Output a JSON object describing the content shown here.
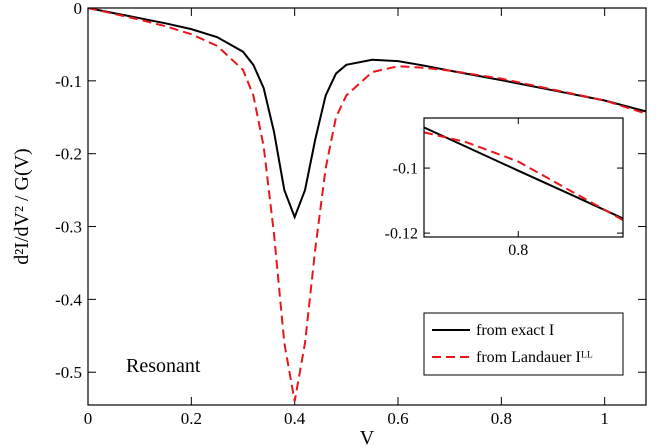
{
  "chart_data": [
    {
      "type": "line",
      "xlabel": "V",
      "ylabel": "d²I/dV² / G(V)",
      "annotation": "Resonant",
      "x": [
        0,
        0.05,
        0.1,
        0.15,
        0.2,
        0.25,
        0.3,
        0.32,
        0.34,
        0.36,
        0.38,
        0.4,
        0.42,
        0.44,
        0.46,
        0.48,
        0.5,
        0.55,
        0.6,
        0.65,
        0.7,
        0.8,
        0.9,
        1.0,
        1.08
      ],
      "series": [
        {
          "name": "from exact I",
          "color": "#000000",
          "dash": "solid",
          "values": [
            0,
            -0.007,
            -0.014,
            -0.021,
            -0.029,
            -0.04,
            -0.06,
            -0.078,
            -0.11,
            -0.17,
            -0.25,
            -0.287,
            -0.25,
            -0.18,
            -0.12,
            -0.09,
            -0.078,
            -0.071,
            -0.073,
            -0.079,
            -0.086,
            -0.099,
            -0.113,
            -0.127,
            -0.142
          ]
        },
        {
          "name": "from Landauer Iᴸᴸ",
          "color": "#e8161b",
          "dash": "dashed",
          "values": [
            0,
            -0.008,
            -0.016,
            -0.025,
            -0.036,
            -0.052,
            -0.085,
            -0.12,
            -0.19,
            -0.31,
            -0.46,
            -0.54,
            -0.46,
            -0.33,
            -0.22,
            -0.15,
            -0.12,
            -0.088,
            -0.08,
            -0.082,
            -0.086,
            -0.097,
            -0.112,
            -0.127,
            -0.145
          ]
        }
      ],
      "xlim": [
        0,
        1.08
      ],
      "ylim": [
        -0.545,
        0
      ],
      "xticks": [
        0,
        0.2,
        0.4,
        0.6,
        0.8,
        1
      ],
      "yticks": [
        0,
        -0.1,
        -0.2,
        -0.3,
        -0.4,
        -0.5
      ],
      "legend": "lower right"
    },
    {
      "type": "line",
      "x": [
        0.71,
        0.75,
        0.8,
        0.85,
        0.9
      ],
      "series": [
        {
          "color": "#000000",
          "dash": "solid",
          "values": [
            -0.0875,
            -0.0934,
            -0.1008,
            -0.1081,
            -0.1155
          ]
        },
        {
          "color": "#e8161b",
          "dash": "dashed",
          "values": [
            -0.089,
            -0.092,
            -0.098,
            -0.107,
            -0.116
          ]
        }
      ],
      "xlim": [
        0.71,
        0.9
      ],
      "ylim": [
        -0.1212,
        -0.0846
      ],
      "xticks": [
        0.8
      ],
      "yticks": [
        -0.1,
        -0.12
      ]
    }
  ]
}
